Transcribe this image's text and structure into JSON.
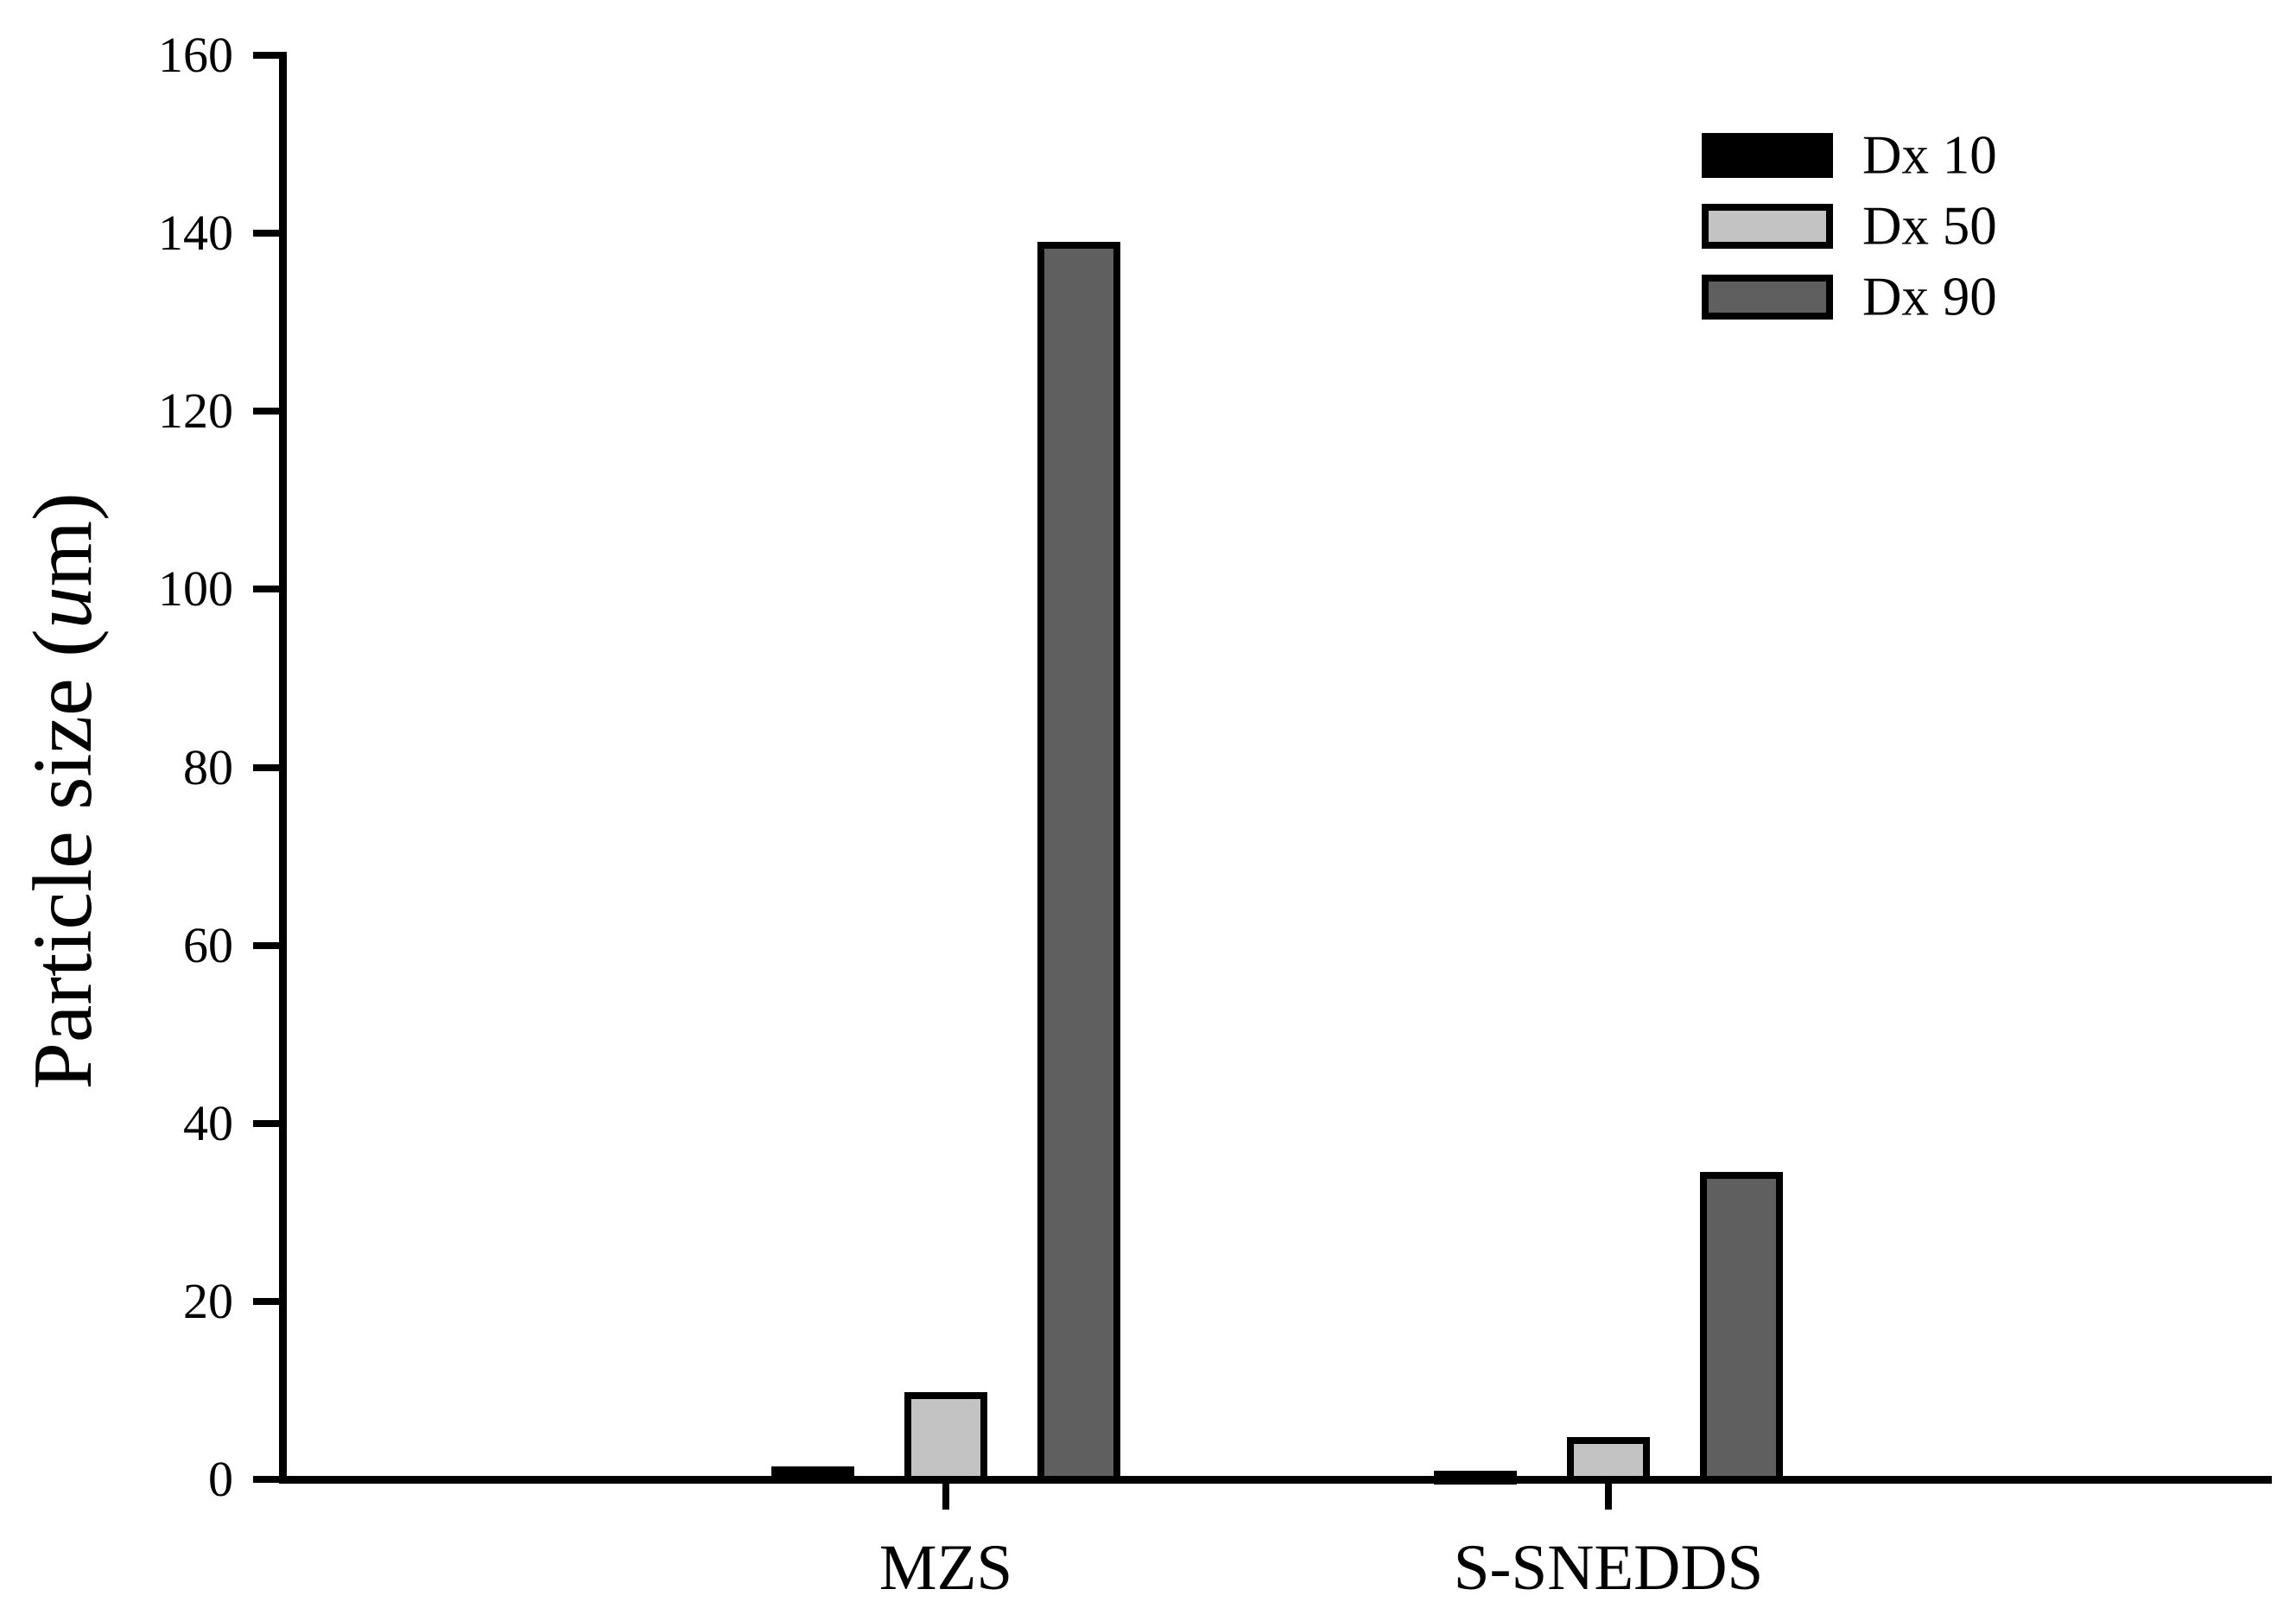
{
  "chart_data": {
    "type": "bar",
    "title": "",
    "xlabel": "",
    "ylabel": "Particle size (um)",
    "ylabel_parts": {
      "pre": "Particle size (",
      "italic": "u",
      "post": "m)"
    },
    "categories": [
      "MZS",
      "S-SNEDDS"
    ],
    "series": [
      {
        "name": "Dx 10",
        "color": "#000000",
        "values": [
          1.5,
          1.0
        ]
      },
      {
        "name": "Dx 50",
        "color": "#c3c3c3",
        "values": [
          9.8,
          4.8
        ]
      },
      {
        "name": "Dx 90",
        "color": "#5f5f5f",
        "values": [
          139.0,
          34.5
        ]
      }
    ],
    "ylim": [
      0,
      160
    ],
    "ytick_step": 20,
    "yticks": [
      0,
      20,
      40,
      60,
      80,
      100,
      120,
      140,
      160
    ],
    "grid": false,
    "legend_position": "upper-right",
    "bar_border_color": "#000000",
    "axis_color": "#000000",
    "background_color": "#ffffff"
  }
}
